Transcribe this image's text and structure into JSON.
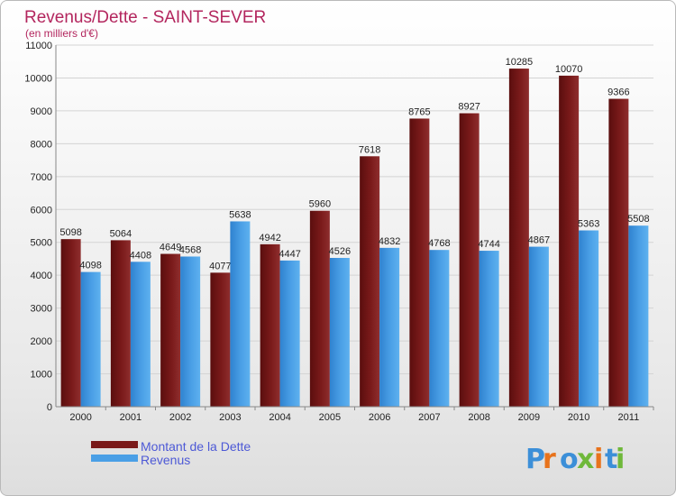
{
  "chart_data": {
    "type": "bar",
    "title": "Revenus/Dette - SAINT-SEVER",
    "subtitle": "(en milliers d'€)",
    "categories": [
      "2000",
      "2001",
      "2002",
      "2003",
      "2004",
      "2005",
      "2006",
      "2007",
      "2008",
      "2009",
      "2010",
      "2011"
    ],
    "series": [
      {
        "name": "Montant de la Dette",
        "color": "#7a1a1a",
        "values": [
          5098,
          5064,
          4649,
          4077,
          4942,
          5960,
          7618,
          8765,
          8927,
          10285,
          10070,
          9366
        ]
      },
      {
        "name": "Revenus",
        "color": "#4a9fe6",
        "values": [
          4098,
          4408,
          4568,
          5638,
          4447,
          4526,
          4832,
          4768,
          4744,
          4867,
          5363,
          5508
        ]
      }
    ],
    "ylim": [
      0,
      11000
    ],
    "yticks": [
      0,
      1000,
      2000,
      3000,
      4000,
      5000,
      6000,
      7000,
      8000,
      9000,
      10000,
      11000
    ],
    "grid": true,
    "legend_position": "bottom-left"
  },
  "brand": {
    "letters": [
      "P",
      "r",
      "o",
      "x",
      "i",
      "t",
      "i"
    ],
    "colors": [
      "#3c8fd8",
      "#e8731c",
      "#3c8fd8",
      "#6fb83a",
      "#e8731c",
      "#3c8fd8",
      "#6fb83a"
    ]
  }
}
